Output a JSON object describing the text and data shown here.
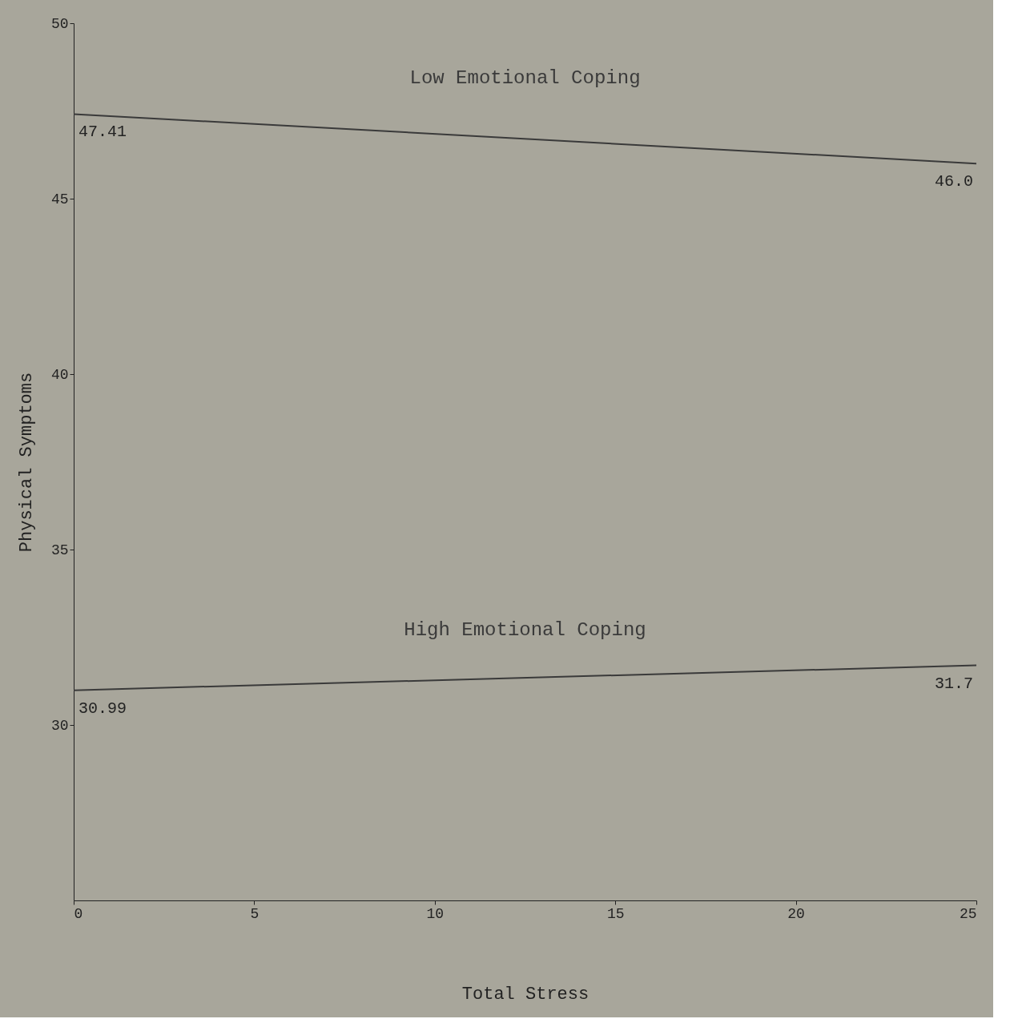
{
  "chart_data": {
    "type": "line",
    "xlabel": "Total Stress",
    "ylabel": "Physical Symptoms",
    "x": [
      0,
      25
    ],
    "xlim": [
      0,
      25
    ],
    "xticks": [
      0,
      5,
      10,
      15,
      20,
      25
    ],
    "ylim": [
      25,
      50
    ],
    "yticks": [
      30,
      35,
      40,
      45,
      50
    ],
    "series": [
      {
        "name": "Low Emotional Coping",
        "color": "#3a3a3a",
        "values": [
          47.41,
          46.0
        ],
        "value_labels": [
          "47.41",
          "46.0"
        ]
      },
      {
        "name": "High Emotional Coping",
        "color": "#3a3a3a",
        "values": [
          30.99,
          31.7
        ],
        "value_labels": [
          "30.99",
          "31.7"
        ]
      }
    ],
    "grid": false,
    "legend": false,
    "marker": "none",
    "line_style": "solid"
  }
}
